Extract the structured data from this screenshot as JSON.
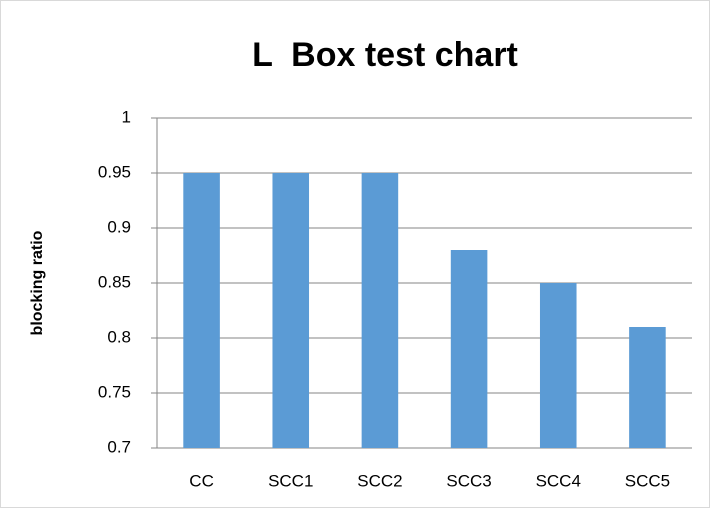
{
  "chart_data": {
    "type": "bar",
    "title": "L  Box test chart",
    "y_label": "blocking ratio",
    "categories": [
      "CC",
      "SCC1",
      "SCC2",
      "SCC3",
      "SCC4",
      "SCC5"
    ],
    "values": [
      0.95,
      0.95,
      0.95,
      0.88,
      0.85,
      0.81
    ],
    "color": "#5b9bd5",
    "ylim": [
      0.7,
      1
    ],
    "yticks": [
      0.7,
      0.75,
      0.8,
      0.85,
      0.9,
      0.95,
      1
    ],
    "grid": true
  }
}
